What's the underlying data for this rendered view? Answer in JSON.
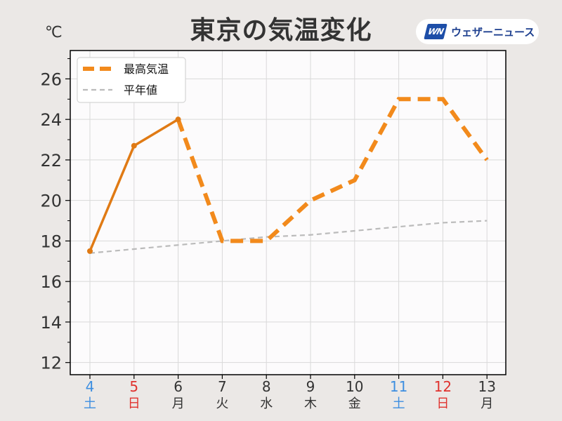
{
  "header": {
    "title": "東京の気温変化",
    "unit": "℃",
    "brand_logo": "WN",
    "brand_name": "ウェザーニュース"
  },
  "colors": {
    "max_temp": "#f28a1c",
    "max_temp_observed": "#e07a14",
    "normal": "#bbbbbb",
    "saturday": "#3d8ee0",
    "sunday": "#e0322e",
    "weekday": "#333333",
    "plot_bg": "#fcfbfc",
    "grid": "#d9d9d9"
  },
  "chart_data": {
    "type": "line",
    "categories": [
      {
        "date": "4",
        "day": "土",
        "kind": "sat"
      },
      {
        "date": "5",
        "day": "日",
        "kind": "sun"
      },
      {
        "date": "6",
        "day": "月",
        "kind": "wd"
      },
      {
        "date": "7",
        "day": "火",
        "kind": "wd"
      },
      {
        "date": "8",
        "day": "水",
        "kind": "wd"
      },
      {
        "date": "9",
        "day": "木",
        "kind": "wd"
      },
      {
        "date": "10",
        "day": "金",
        "kind": "wd"
      },
      {
        "date": "11",
        "day": "土",
        "kind": "sat"
      },
      {
        "date": "12",
        "day": "日",
        "kind": "sun"
      },
      {
        "date": "13",
        "day": "月",
        "kind": "wd"
      }
    ],
    "series": [
      {
        "name": "最高気温",
        "values": [
          17.5,
          22.7,
          24.0,
          18.0,
          18.0,
          20.0,
          21.0,
          25.0,
          25.0,
          22.0
        ],
        "observed_count": 3,
        "style": "dashed-forecast"
      },
      {
        "name": "平年値",
        "values": [
          17.4,
          17.6,
          17.8,
          18.0,
          18.2,
          18.3,
          18.5,
          18.7,
          18.9,
          19.0
        ],
        "style": "dashed-thin"
      }
    ],
    "yticks": [
      12,
      14,
      16,
      18,
      20,
      22,
      24,
      26
    ],
    "ylim": [
      11.4,
      27.4
    ],
    "grid": true,
    "legend": "top-left"
  }
}
